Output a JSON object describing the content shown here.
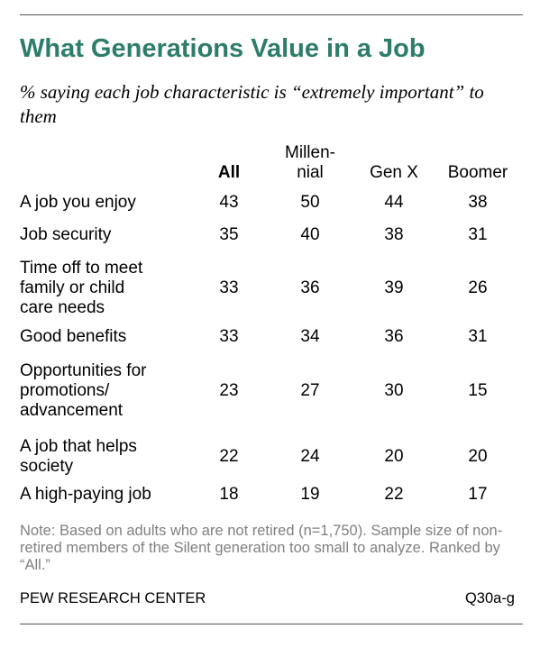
{
  "colors": {
    "title": "#2e7d6b",
    "text": "#000000",
    "note": "#808080",
    "rule": "#555555"
  },
  "chart_data": {
    "type": "table",
    "title": "What Generations Value in a Job",
    "subtitle": "% saying each job characteristic is “extremely important” to them",
    "columns": [
      "All",
      "Millen-\nnial",
      "Gen X",
      "Boomer"
    ],
    "rows": [
      {
        "label": "A job you enjoy",
        "values": [
          43,
          50,
          44,
          38
        ]
      },
      {
        "label": "Job security",
        "values": [
          35,
          40,
          38,
          31
        ]
      },
      {
        "label": "Time off to meet\nfamily or child\ncare needs",
        "values": [
          33,
          36,
          39,
          26
        ]
      },
      {
        "label": "Good benefits",
        "values": [
          33,
          34,
          36,
          31
        ]
      },
      {
        "label": "Opportunities for\npromotions/\nadvancement",
        "values": [
          23,
          27,
          30,
          15
        ]
      },
      {
        "label": "A job that helps\nsociety",
        "values": [
          22,
          24,
          20,
          20
        ]
      },
      {
        "label": "A high-paying job",
        "values": [
          18,
          19,
          22,
          17
        ]
      }
    ],
    "note": "Note: Based on adults who are not retired (n=1,750). Sample size of non-retired members of the Silent generation too small to analyze. Ranked by “All.”",
    "source": "PEW RESEARCH CENTER",
    "reference": "Q30a-g"
  }
}
